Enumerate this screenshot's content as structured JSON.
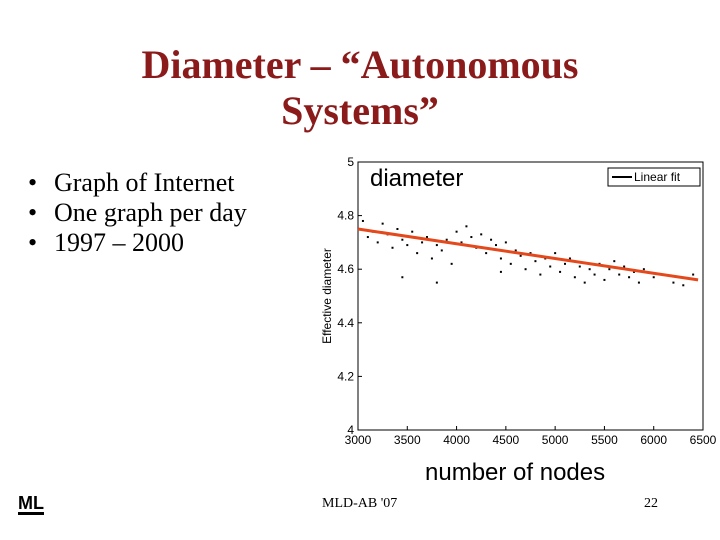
{
  "slide": {
    "title_lines": [
      "Diameter – “Autonomous",
      "Systems”"
    ],
    "bullets": [
      "Graph of Internet",
      "One graph per day",
      "1997 – 2000"
    ],
    "footer": "MLD-AB '07",
    "page_number": "22",
    "logo": "ML"
  },
  "chart_data": {
    "type": "scatter",
    "annotations": [
      "diameter",
      "number of nodes"
    ],
    "y_label": "Effective diameter",
    "xlim": [
      3000,
      6500
    ],
    "xticks": [
      3000,
      3500,
      4000,
      4500,
      5000,
      5500,
      6000,
      6500
    ],
    "ylim": [
      4,
      5
    ],
    "yticks": [
      4,
      4.2,
      4.4,
      4.6,
      4.8,
      5
    ],
    "legend": "top-right",
    "series": [
      {
        "color": "#000000",
        "x": [
          3050,
          3100,
          3150,
          3200,
          3250,
          3300,
          3350,
          3400,
          3450,
          3500,
          3550,
          3600,
          3650,
          3700,
          3750,
          3800,
          3850,
          3900,
          3950,
          4000,
          4050,
          4100,
          4150,
          4200,
          4250,
          4300,
          4350,
          4400,
          4450,
          4500,
          4550,
          4600,
          4650,
          4700,
          4750,
          4800,
          4850,
          4900,
          4950,
          5000,
          5050,
          5100,
          5150,
          5200,
          5250,
          5300,
          5350,
          5400,
          5450,
          5500,
          5550,
          5600,
          5650,
          5700,
          5750,
          5800,
          5850,
          5900,
          6000,
          6100,
          6200,
          6300,
          6400,
          3450,
          4450,
          3800
        ],
        "values": [
          4.78,
          4.72,
          4.74,
          4.7,
          4.77,
          4.73,
          4.68,
          4.75,
          4.71,
          4.69,
          4.74,
          4.66,
          4.7,
          4.72,
          4.64,
          4.69,
          4.67,
          4.71,
          4.62,
          4.74,
          4.7,
          4.76,
          4.72,
          4.68,
          4.73,
          4.66,
          4.71,
          4.69,
          4.64,
          4.7,
          4.62,
          4.67,
          4.65,
          4.6,
          4.66,
          4.63,
          4.58,
          4.64,
          4.61,
          4.66,
          4.59,
          4.62,
          4.64,
          4.57,
          4.61,
          4.55,
          4.6,
          4.58,
          4.62,
          4.56,
          4.6,
          4.63,
          4.58,
          4.61,
          4.57,
          4.59,
          4.55,
          4.6,
          4.57,
          4.58,
          4.55,
          4.54,
          4.58,
          4.57,
          4.59,
          4.55
        ]
      },
      {
        "name": "Linear fit",
        "type": "line",
        "color": "#e4481b",
        "legend_color": "#000000",
        "x": [
          3000,
          6450
        ],
        "values": [
          4.75,
          4.56
        ]
      }
    ]
  }
}
